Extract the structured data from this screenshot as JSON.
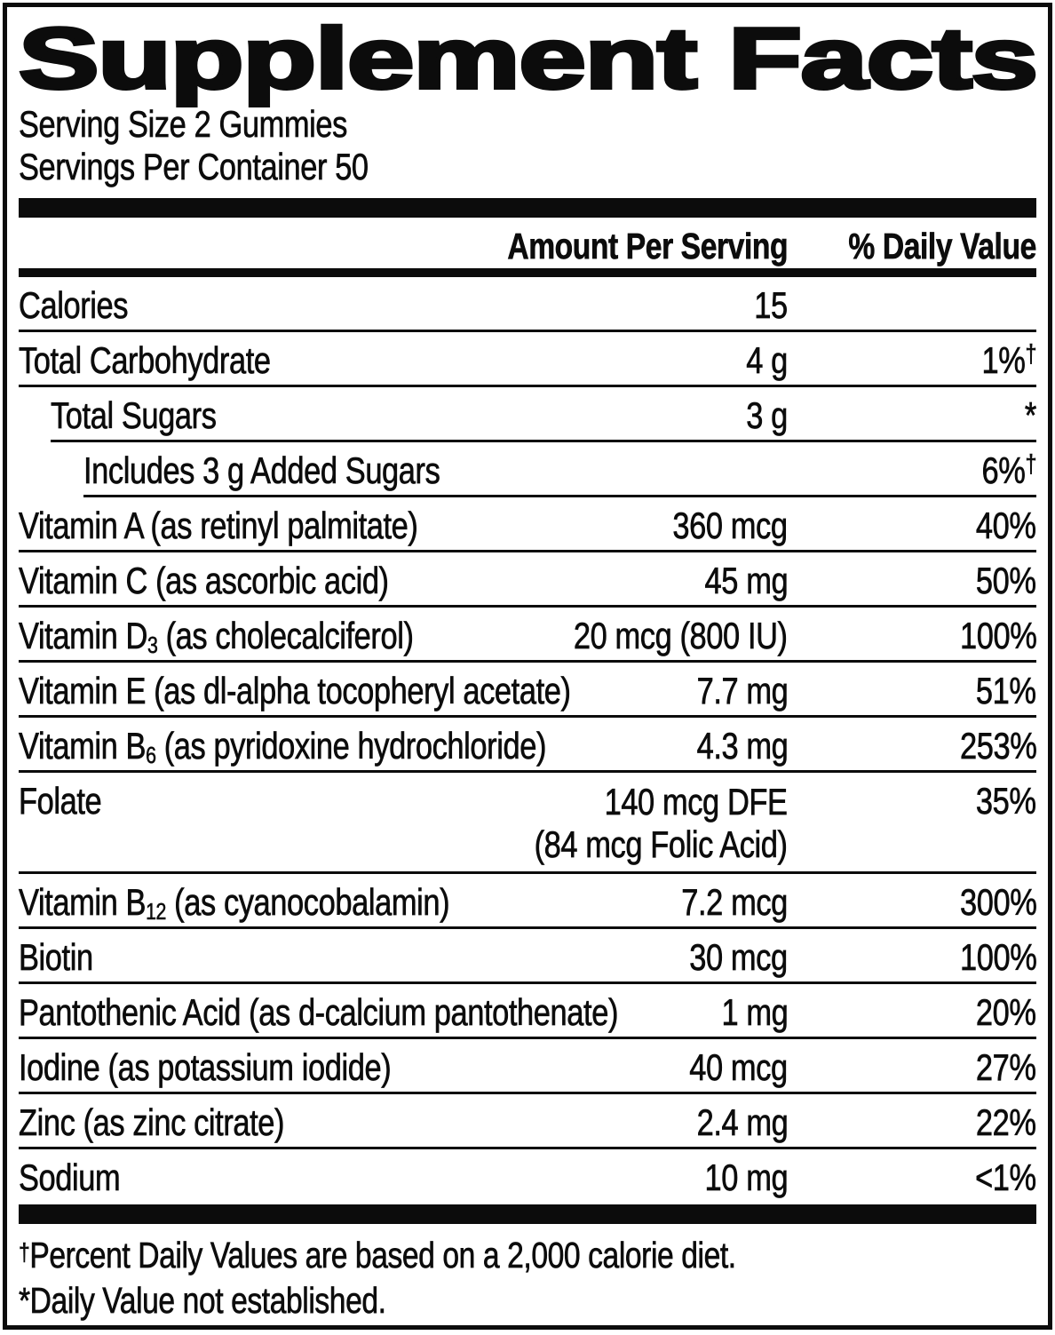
{
  "colors": {
    "ink": "#0c0c0c",
    "background": "#ffffff"
  },
  "title": "Supplement Facts",
  "serving": {
    "size": "Serving Size 2 Gummies",
    "per_container": "Servings Per Container 50"
  },
  "header": {
    "amount": "Amount Per Serving",
    "daily_value": "% Daily Value"
  },
  "rows": [
    {
      "name": "Calories",
      "amount": "15",
      "dv": "",
      "indent": 0
    },
    {
      "name": "Total Carbohydrate",
      "amount": "4 g",
      "dv": "1%",
      "dv_sup": "†",
      "indent": 0
    },
    {
      "name": "Total Sugars",
      "amount": "3 g",
      "dv": "*",
      "indent": 1
    },
    {
      "name": "Includes 3 g Added Sugars",
      "amount": "",
      "dv": "6%",
      "dv_sup": "†",
      "indent": 2
    },
    {
      "name": "Vitamin A (as retinyl palmitate)",
      "amount": "360 mcg",
      "dv": "40%",
      "indent": 0
    },
    {
      "name": "Vitamin C (as ascorbic acid)",
      "amount": "45 mg",
      "dv": "50%",
      "indent": 0
    },
    {
      "name": "Vitamin D",
      "sub": "3",
      "post": " (as cholecalciferol)",
      "amount": "20 mcg (800 IU)",
      "dv": "100%",
      "indent": 0
    },
    {
      "name": "Vitamin E (as dl-alpha tocopheryl acetate)",
      "amount": "7.7 mg",
      "dv": "51%",
      "indent": 0
    },
    {
      "name": "Vitamin B",
      "sub": "6",
      "post": " (as pyridoxine hydrochloride)",
      "amount": "4.3 mg",
      "dv": "253%",
      "indent": 0
    },
    {
      "name": "Folate",
      "amount": "140 mcg DFE",
      "amount2": "(84 mcg Folic Acid)",
      "dv": "35%",
      "indent": 0
    },
    {
      "name": "Vitamin B",
      "sub": "12",
      "post": " (as cyanocobalamin)",
      "amount": "7.2 mcg",
      "dv": "300%",
      "indent": 0
    },
    {
      "name": "Biotin",
      "amount": "30 mcg",
      "dv": "100%",
      "indent": 0
    },
    {
      "name": "Pantothenic Acid (as d-calcium pantothenate)",
      "amount": "1 mg",
      "dv": "20%",
      "indent": 0
    },
    {
      "name": "Iodine (as potassium iodide)",
      "amount": "40 mcg",
      "dv": "27%",
      "indent": 0
    },
    {
      "name": "Zinc (as zinc citrate)",
      "amount": "2.4 mg",
      "dv": "22%",
      "indent": 0
    },
    {
      "name": "Sodium",
      "amount": "10 mg",
      "dv": "<1%",
      "indent": 0
    }
  ],
  "footnotes": {
    "dagger_sup": "†",
    "dagger_text": "Percent Daily Values are based on a 2,000 calorie diet.",
    "asterisk_text": "*Daily Value not established."
  }
}
